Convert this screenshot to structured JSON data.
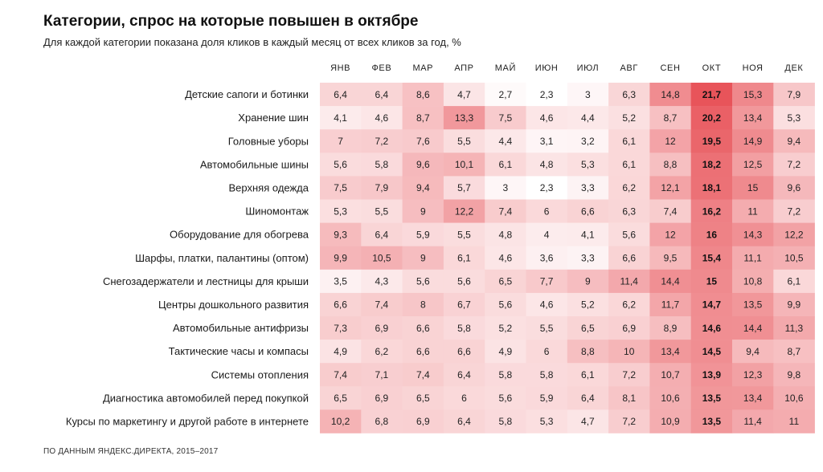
{
  "title": "Категории, спрос на которые повышен в октябре",
  "subtitle": "Для каждой категории показана доля кликов в каждый месяц от всех кликов за год, %",
  "source": "ПО ДАННЫМ ЯНДЕКС.ДИРЕКТА, 2015–2017",
  "colors": {
    "low": "#ffffff",
    "high": "#e8545a",
    "highlight_column_text": "bold"
  },
  "chart_data": {
    "type": "heatmap",
    "title": "Категории, спрос на которые повышен в октябре",
    "subtitle": "Для каждой категории показана доля кликов в каждый месяц от всех кликов за год, %",
    "highlight_column": "ОКТ",
    "x": [
      "ЯНВ",
      "ФЕВ",
      "МАР",
      "АПР",
      "МАЙ",
      "ИЮН",
      "ИЮЛ",
      "АВГ",
      "СЕН",
      "ОКТ",
      "НОЯ",
      "ДЕК"
    ],
    "y": [
      "Детские сапоги и ботинки",
      "Хранение шин",
      "Головные уборы",
      "Автомобильные шины",
      "Верхняя одежда",
      "Шиномонтаж",
      "Оборудование для обогрева",
      "Шарфы, платки, палантины (оптом)",
      "Снегозадержатели и лестницы для крыши",
      "Центры дошкольного развития",
      "Автомобильные антифризы",
      "Тактические часы и компасы",
      "Системы отопления",
      "Диагностика автомобилей перед покупкой",
      "Курсы по маркетингу и другой работе в интернете"
    ],
    "values": [
      [
        "6,4",
        "6,4",
        "8,6",
        "4,7",
        "2,7",
        "2,3",
        "3",
        "6,3",
        "14,8",
        "21,7",
        "15,3",
        "7,9"
      ],
      [
        "4,1",
        "4,6",
        "8,7",
        "13,3",
        "7,5",
        "4,6",
        "4,4",
        "5,2",
        "8,7",
        "20,2",
        "13,4",
        "5,3"
      ],
      [
        "7",
        "7,2",
        "7,6",
        "5,5",
        "4,4",
        "3,1",
        "3,2",
        "6,1",
        "12",
        "19,5",
        "14,9",
        "9,4"
      ],
      [
        "5,6",
        "5,8",
        "9,6",
        "10,1",
        "6,1",
        "4,8",
        "5,3",
        "6,1",
        "8,8",
        "18,2",
        "12,5",
        "7,2"
      ],
      [
        "7,5",
        "7,9",
        "9,4",
        "5,7",
        "3",
        "2,3",
        "3,3",
        "6,2",
        "12,1",
        "18,1",
        "15",
        "9,6"
      ],
      [
        "5,3",
        "5,5",
        "9",
        "12,2",
        "7,4",
        "6",
        "6,6",
        "6,3",
        "7,4",
        "16,2",
        "11",
        "7,2"
      ],
      [
        "9,3",
        "6,4",
        "5,9",
        "5,5",
        "4,8",
        "4",
        "4,1",
        "5,6",
        "12",
        "16",
        "14,3",
        "12,2"
      ],
      [
        "9,9",
        "10,5",
        "9",
        "6,1",
        "4,6",
        "3,6",
        "3,3",
        "6,6",
        "9,5",
        "15,4",
        "11,1",
        "10,5"
      ],
      [
        "3,5",
        "4,3",
        "5,6",
        "5,6",
        "6,5",
        "7,7",
        "9",
        "11,4",
        "14,4",
        "15",
        "10,8",
        "6,1"
      ],
      [
        "6,6",
        "7,4",
        "8",
        "6,7",
        "5,6",
        "4,6",
        "5,2",
        "6,2",
        "11,7",
        "14,7",
        "13,5",
        "9,9"
      ],
      [
        "7,3",
        "6,9",
        "6,6",
        "5,8",
        "5,2",
        "5,5",
        "6,5",
        "6,9",
        "8,9",
        "14,6",
        "14,4",
        "11,3"
      ],
      [
        "4,9",
        "6,2",
        "6,6",
        "6,6",
        "4,9",
        "6",
        "8,8",
        "10",
        "13,4",
        "14,5",
        "9,4",
        "8,7"
      ],
      [
        "7,4",
        "7,1",
        "7,4",
        "6,4",
        "5,8",
        "5,8",
        "6,1",
        "7,2",
        "10,7",
        "13,9",
        "12,3",
        "9,8"
      ],
      [
        "6,5",
        "6,9",
        "6,5",
        "6",
        "5,6",
        "5,9",
        "6,4",
        "8,1",
        "10,6",
        "13,5",
        "13,4",
        "10,6"
      ],
      [
        "10,2",
        "6,8",
        "6,9",
        "6,4",
        "5,8",
        "5,3",
        "4,7",
        "7,2",
        "10,9",
        "13,5",
        "11,4",
        "11"
      ]
    ]
  }
}
